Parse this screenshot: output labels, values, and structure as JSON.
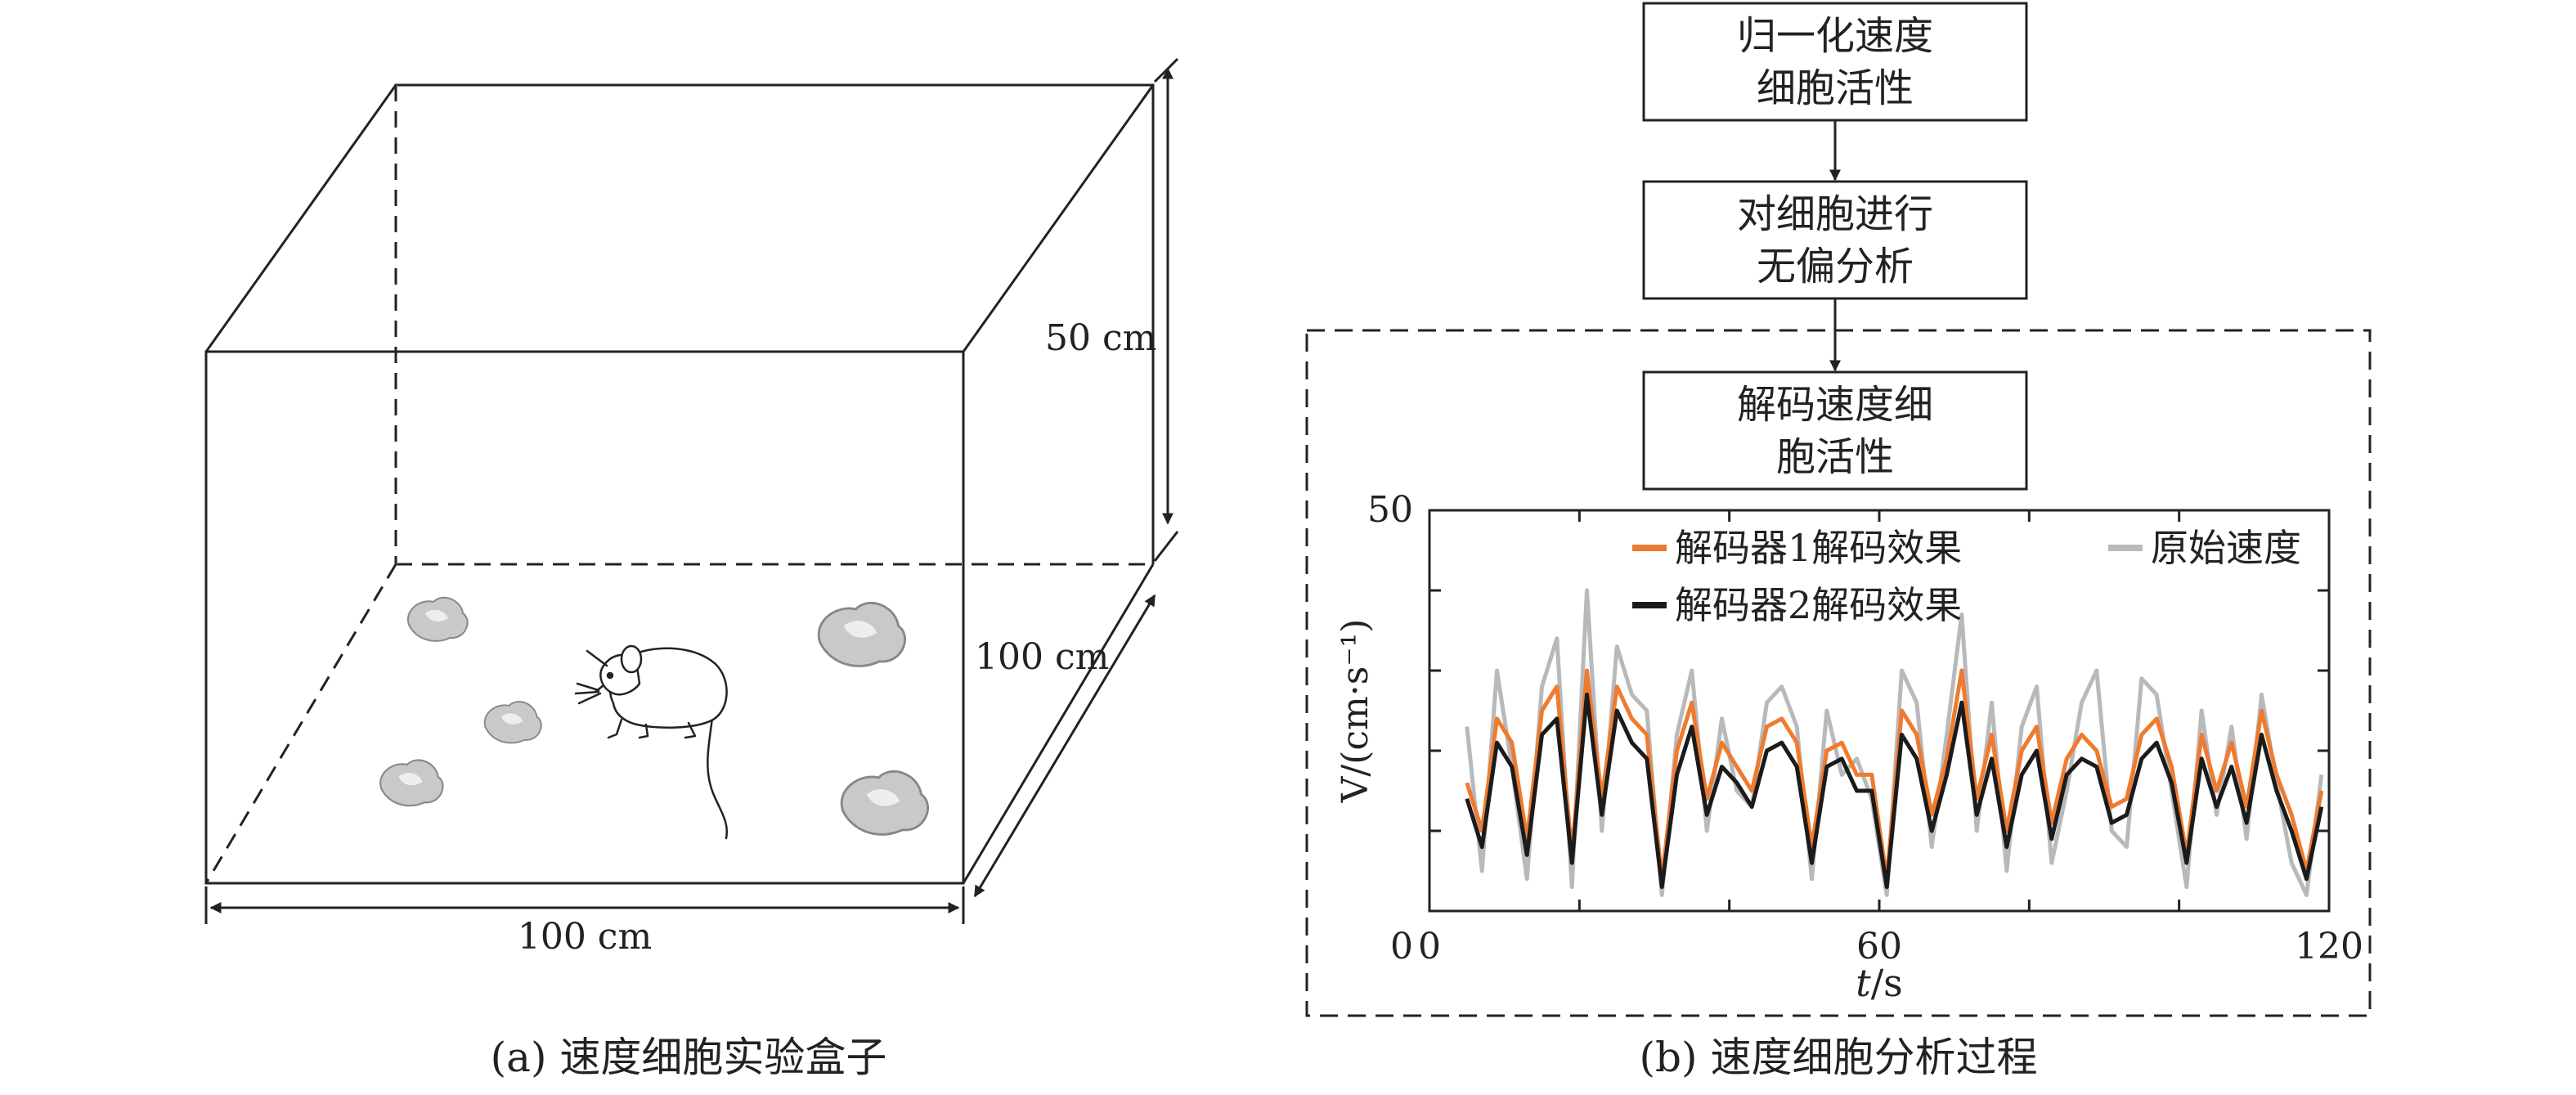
{
  "panel_a": {
    "caption": "(a) 速度细胞实验盒子",
    "dimensions": {
      "height_label": "50 cm",
      "depth_label": "100 cm",
      "width_label": "100 cm"
    }
  },
  "panel_b": {
    "caption": "(b) 速度细胞分析过程",
    "flow": [
      {
        "line1": "归一化速度",
        "line2": "细胞活性"
      },
      {
        "line1": "对细胞进行",
        "line2": "无偏分析"
      },
      {
        "line1": "解码速度细",
        "line2": "胞活性"
      }
    ]
  },
  "chart_data": {
    "type": "line",
    "title": "",
    "xlabel": "t/s",
    "ylabel": "V/(cm·s⁻¹)",
    "xlim": [
      0,
      120
    ],
    "ylim": [
      0,
      50
    ],
    "xticks": [
      0,
      60,
      120
    ],
    "yticks": [
      0,
      50
    ],
    "legend": "top",
    "colors": {
      "decoder1": "#ef7b2e",
      "decoder2": "#1b1b1b",
      "original": "#b8b9bc"
    },
    "series": [
      {
        "name": "解码器1解码效果",
        "x": [
          5,
          7,
          9,
          11,
          13,
          15,
          17,
          19,
          21,
          23,
          25,
          27,
          29,
          31,
          33,
          35,
          37,
          39,
          41,
          43,
          45,
          47,
          49,
          51,
          53,
          55,
          57,
          59,
          61,
          63,
          65,
          67,
          69,
          71,
          73,
          75,
          77,
          79,
          81,
          83,
          85,
          87,
          89,
          91,
          93,
          95,
          97,
          99,
          101,
          103,
          105,
          107,
          109,
          111,
          113,
          115,
          117,
          119
        ],
        "values": [
          16,
          10,
          24,
          21,
          9,
          25,
          28,
          7,
          30,
          14,
          28,
          24,
          22,
          4,
          20,
          26,
          14,
          21,
          18,
          15,
          23,
          24,
          21,
          8,
          20,
          21,
          17,
          17,
          4,
          25,
          22,
          12,
          19,
          30,
          14,
          22,
          10,
          20,
          23,
          11,
          19,
          22,
          20,
          13,
          14,
          22,
          24,
          18,
          7,
          22,
          15,
          21,
          13,
          25,
          17,
          12,
          5,
          15
        ]
      },
      {
        "name": "解码器2解码效果",
        "x": [
          5,
          7,
          9,
          11,
          13,
          15,
          17,
          19,
          21,
          23,
          25,
          27,
          29,
          31,
          33,
          35,
          37,
          39,
          41,
          43,
          45,
          47,
          49,
          51,
          53,
          55,
          57,
          59,
          61,
          63,
          65,
          67,
          69,
          71,
          73,
          75,
          77,
          79,
          81,
          83,
          85,
          87,
          89,
          91,
          93,
          95,
          97,
          99,
          101,
          103,
          105,
          107,
          109,
          111,
          113,
          115,
          117,
          119
        ],
        "values": [
          14,
          8,
          21,
          18,
          7,
          22,
          24,
          6,
          27,
          12,
          25,
          21,
          19,
          3,
          17,
          23,
          12,
          18,
          16,
          13,
          20,
          21,
          18,
          6,
          18,
          19,
          15,
          15,
          3,
          22,
          19,
          10,
          17,
          26,
          12,
          19,
          8,
          17,
          20,
          9,
          17,
          19,
          18,
          11,
          12,
          19,
          21,
          16,
          6,
          19,
          13,
          18,
          11,
          22,
          15,
          10,
          4,
          13
        ]
      },
      {
        "name": "原始速度",
        "x": [
          5,
          7,
          9,
          11,
          13,
          15,
          17,
          19,
          21,
          23,
          25,
          27,
          29,
          31,
          33,
          35,
          37,
          39,
          41,
          43,
          45,
          47,
          49,
          51,
          53,
          55,
          57,
          59,
          61,
          63,
          65,
          67,
          69,
          71,
          73,
          75,
          77,
          79,
          81,
          83,
          85,
          87,
          89,
          91,
          93,
          95,
          97,
          99,
          101,
          103,
          105,
          107,
          109,
          111,
          113,
          115,
          117,
          119
        ],
        "values": [
          23,
          5,
          30,
          18,
          4,
          28,
          34,
          3,
          40,
          10,
          33,
          27,
          25,
          2,
          22,
          30,
          10,
          24,
          15,
          13,
          26,
          28,
          23,
          4,
          25,
          17,
          19,
          14,
          2,
          30,
          26,
          8,
          22,
          37,
          10,
          26,
          5,
          23,
          28,
          6,
          15,
          26,
          30,
          10,
          8,
          29,
          27,
          15,
          3,
          25,
          12,
          23,
          9,
          27,
          16,
          6,
          2,
          17
        ]
      }
    ]
  }
}
